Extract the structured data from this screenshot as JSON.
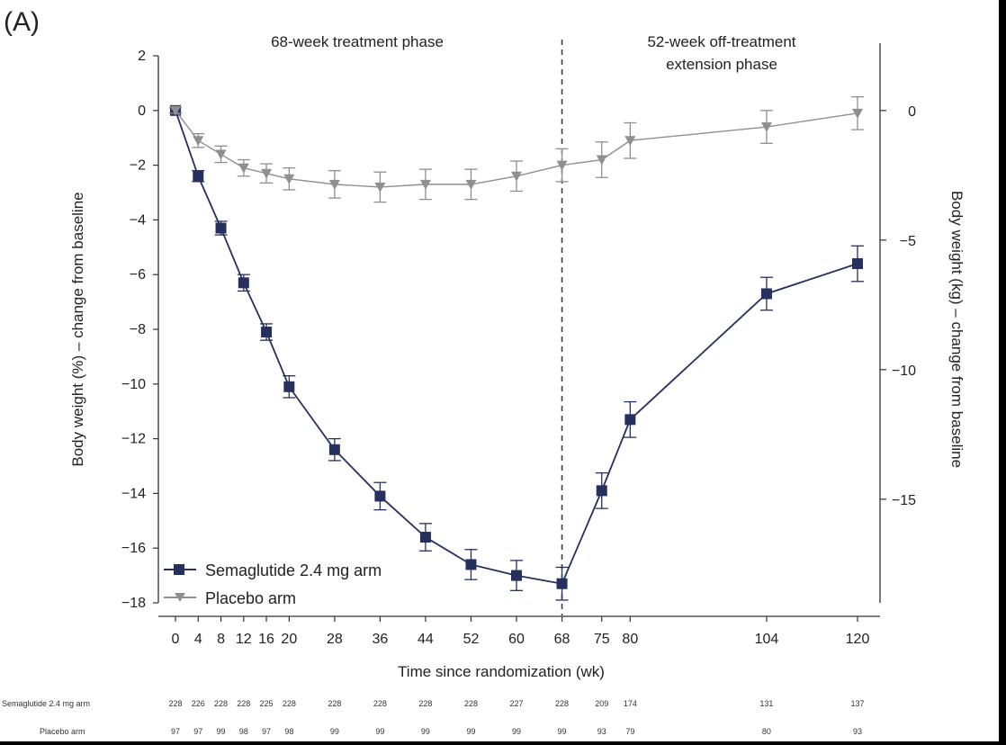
{
  "panel_label": "(A)",
  "chart_data": {
    "type": "line",
    "title": "",
    "xlabel": "Time since randomization (wk)",
    "ylabel": "Body weight (%) – change from baseline",
    "ylabel_right": "Body weight (kg) – change from baseline",
    "xlim": [
      0,
      120
    ],
    "ylim": [
      -18,
      2
    ],
    "ylim_right_ticks": [
      0,
      -5,
      -10,
      -15
    ],
    "x_ticks": [
      0,
      4,
      8,
      12,
      16,
      20,
      28,
      36,
      44,
      52,
      60,
      68,
      75,
      80,
      104,
      120
    ],
    "y_ticks": [
      2,
      0,
      -2,
      -4,
      -6,
      -8,
      -10,
      -12,
      -14,
      -16,
      -18
    ],
    "y_tick_labels": [
      "2",
      "0",
      "−2",
      "−4",
      "−6",
      "−8",
      "−10",
      "−12",
      "−14",
      "−16",
      "−18"
    ],
    "y_right_tick_labels": [
      "0",
      "−5",
      "−10",
      "−15"
    ],
    "phase_divider_x": 68,
    "phase_labels": [
      "68-week treatment phase",
      "52-week off-treatment",
      "extension phase"
    ],
    "series": [
      {
        "name": "Semaglutide 2.4 mg arm",
        "color": "#26305e",
        "marker": "square",
        "x": [
          0,
          4,
          8,
          12,
          16,
          20,
          28,
          36,
          44,
          52,
          60,
          68,
          75,
          80,
          104,
          120
        ],
        "y": [
          0,
          -2.4,
          -4.3,
          -6.3,
          -8.1,
          -10.1,
          -12.4,
          -14.1,
          -15.6,
          -16.6,
          -17.0,
          -17.3,
          -13.9,
          -11.3,
          -6.7,
          -5.6
        ],
        "err": [
          0.1,
          0.2,
          0.25,
          0.3,
          0.3,
          0.4,
          0.4,
          0.5,
          0.5,
          0.55,
          0.55,
          0.6,
          0.65,
          0.65,
          0.6,
          0.65
        ]
      },
      {
        "name": "Placebo arm",
        "color": "#8f8f8f",
        "marker": "triangle-down",
        "x": [
          0,
          4,
          8,
          12,
          16,
          20,
          28,
          36,
          44,
          52,
          60,
          68,
          75,
          80,
          104,
          120
        ],
        "y": [
          0,
          -1.1,
          -1.6,
          -2.1,
          -2.3,
          -2.5,
          -2.7,
          -2.8,
          -2.7,
          -2.7,
          -2.4,
          -2.0,
          -1.8,
          -1.1,
          -0.6,
          -0.1
        ],
        "err": [
          0.1,
          0.25,
          0.3,
          0.3,
          0.35,
          0.4,
          0.5,
          0.55,
          0.55,
          0.55,
          0.55,
          0.6,
          0.65,
          0.65,
          0.6,
          0.6
        ]
      }
    ],
    "at_risk": {
      "rows": [
        {
          "label": "Semaglutide 2.4 mg arm",
          "values": [
            "228",
            "226",
            "228",
            "228",
            "225",
            "228",
            "228",
            "228",
            "228",
            "228",
            "227",
            "228",
            "209",
            "174",
            "131",
            "137"
          ]
        },
        {
          "label": "Placebo arm",
          "values": [
            "97",
            "97",
            "99",
            "98",
            "97",
            "98",
            "99",
            "99",
            "99",
            "99",
            "99",
            "99",
            "93",
            "79",
            "80",
            "93"
          ]
        }
      ]
    }
  }
}
